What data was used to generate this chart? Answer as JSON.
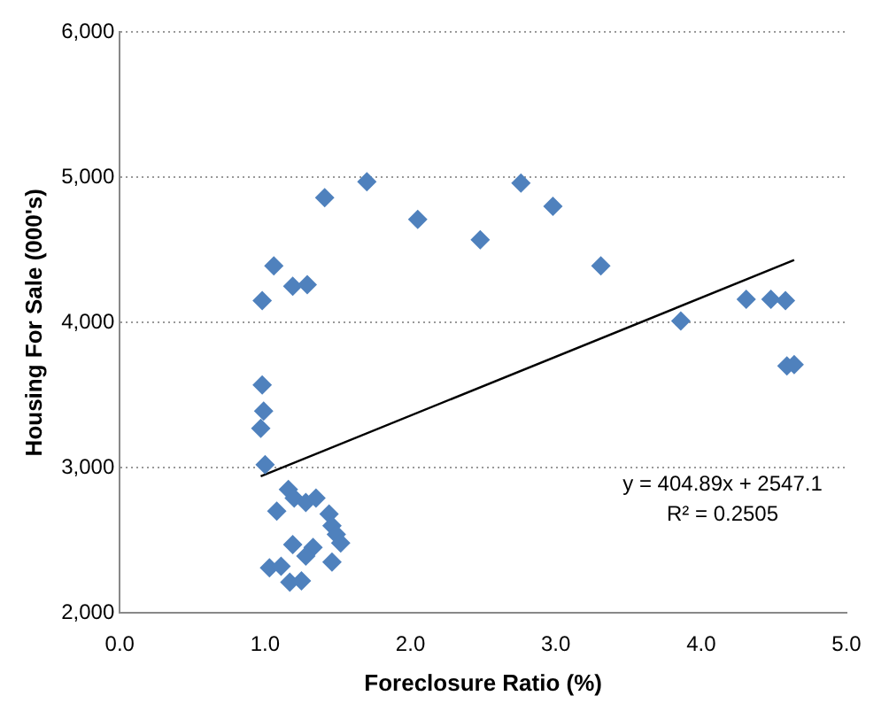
{
  "chart_data": {
    "type": "scatter",
    "xlabel": "Foreclosure Ratio (%)",
    "ylabel": "Housing For Sale (000's)",
    "xlim": [
      0,
      5
    ],
    "xticks": [
      {
        "value": 0,
        "label": "0.0"
      },
      {
        "value": 1,
        "label": "1.0"
      },
      {
        "value": 2,
        "label": "2.0"
      },
      {
        "value": 3,
        "label": "3.0"
      },
      {
        "value": 4,
        "label": "4.0"
      },
      {
        "value": 5,
        "label": "5.0"
      }
    ],
    "ylim": [
      2000,
      6000
    ],
    "yticks": [
      {
        "value": 2000,
        "label": "2,000"
      },
      {
        "value": 3000,
        "label": "3,000"
      },
      {
        "value": 4000,
        "label": "4,000"
      },
      {
        "value": 5000,
        "label": "5,000"
      },
      {
        "value": 6000,
        "label": "6,000"
      }
    ],
    "grid": "y",
    "marker": "diamond",
    "series": [
      {
        "color": "#4f81bd",
        "x": [
          1.06,
          0.98,
          1.19,
          1.29,
          1.41,
          1.7,
          2.05,
          2.48,
          2.76,
          2.98,
          3.31,
          3.86,
          4.31,
          4.48,
          4.58,
          4.59,
          4.64,
          0.98,
          0.99,
          0.97,
          1.0,
          1.16,
          1.2,
          1.28,
          1.35,
          1.08,
          1.44,
          1.46,
          1.49,
          1.52,
          1.19,
          1.33,
          1.28,
          1.46,
          1.03,
          1.11,
          1.17,
          1.25
        ],
        "values": [
          4390,
          4150,
          4250,
          4260,
          4860,
          4970,
          4710,
          4570,
          4960,
          4800,
          4390,
          4010,
          4160,
          4160,
          4150,
          3700,
          3710,
          3570,
          3390,
          3270,
          3020,
          2850,
          2790,
          2760,
          2790,
          2700,
          2680,
          2600,
          2540,
          2480,
          2470,
          2450,
          2390,
          2350,
          2310,
          2320,
          2210,
          2220
        ]
      },
      {
        "type": "line",
        "color": "#000000",
        "marker": "none",
        "line_style": "solid",
        "x": [
          0.97,
          4.64
        ],
        "values": [
          2940,
          4430
        ]
      }
    ],
    "annotations": [
      "y = 404.89x + 2547.1",
      "R² = 0.2505"
    ]
  }
}
